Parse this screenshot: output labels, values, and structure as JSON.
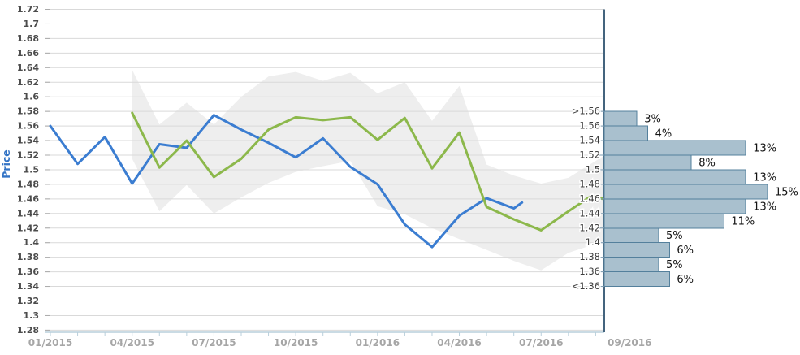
{
  "figure": {
    "y_axis": {
      "title": "Price",
      "labels": [
        "1.72",
        "1.7",
        "1.68",
        "1.66",
        "1.64",
        "1.62",
        "1.6",
        "1.58",
        "1.56",
        "1.54",
        "1.52",
        "1.5",
        "1.48",
        "1.46",
        "1.44",
        "1.42",
        "1.4",
        "1.38",
        "1.36",
        "1.34",
        "1.32",
        "1.3",
        "1.28"
      ],
      "min": 1.28,
      "max": 1.72,
      "step": 0.02
    },
    "x_axis": {
      "labels": [
        {
          "text": "01/2015",
          "month": 0
        },
        {
          "text": "04/2015",
          "month": 3
        },
        {
          "text": "07/2015",
          "month": 6
        },
        {
          "text": "10/2015",
          "month": 9
        },
        {
          "text": "01/2016",
          "month": 12
        },
        {
          "text": "04/2016",
          "month": 15
        },
        {
          "text": "07/2016",
          "month": 18
        }
      ],
      "end_label": "09/2016",
      "minor_tick_every_month": true
    }
  },
  "chart_data": [
    {
      "type": "line",
      "ylabel": "Price",
      "ylim": [
        1.28,
        1.72
      ],
      "x_unit": "months since 01/2015",
      "grid": true,
      "legend": "none",
      "series": [
        {
          "name": "blue-price-series",
          "color": "#3b7dd1",
          "points": [
            [
              0,
              1.56
            ],
            [
              1,
              1.508
            ],
            [
              2,
              1.545
            ],
            [
              3,
              1.481
            ],
            [
              4,
              1.535
            ],
            [
              5,
              1.53
            ],
            [
              6,
              1.575
            ],
            [
              7,
              1.555
            ],
            [
              8,
              1.537
            ],
            [
              9,
              1.517
            ],
            [
              10,
              1.543
            ],
            [
              11,
              1.504
            ],
            [
              12,
              1.48
            ],
            [
              13,
              1.425
            ],
            [
              14,
              1.394
            ],
            [
              15,
              1.437
            ],
            [
              16,
              1.461
            ],
            [
              17,
              1.447
            ],
            [
              17.3,
              1.455
            ]
          ]
        },
        {
          "name": "green-price-series",
          "color": "#8cb84b",
          "points": [
            [
              3,
              1.578
            ],
            [
              4,
              1.503
            ],
            [
              5,
              1.54
            ],
            [
              6,
              1.49
            ],
            [
              7,
              1.515
            ],
            [
              8,
              1.555
            ],
            [
              9,
              1.572
            ],
            [
              10,
              1.568
            ],
            [
              11,
              1.572
            ],
            [
              12,
              1.541
            ],
            [
              13,
              1.571
            ],
            [
              14,
              1.502
            ],
            [
              15,
              1.551
            ],
            [
              16,
              1.449
            ],
            [
              17,
              1.432
            ],
            [
              18,
              1.417
            ],
            [
              19,
              1.443
            ],
            [
              19.8,
              1.463
            ],
            [
              20.3,
              1.46
            ]
          ]
        }
      ],
      "band": {
        "name": "forecast-range-band",
        "color": "#eeeeee",
        "points_month_upper_lower": [
          [
            3,
            1.637,
            1.515
          ],
          [
            4,
            1.562,
            1.443
          ],
          [
            5,
            1.592,
            1.479
          ],
          [
            6,
            1.562,
            1.44
          ],
          [
            7,
            1.6,
            1.462
          ],
          [
            8,
            1.628,
            1.482
          ],
          [
            9,
            1.634,
            1.497
          ],
          [
            10,
            1.622,
            1.505
          ],
          [
            11,
            1.633,
            1.512
          ],
          [
            12,
            1.605,
            1.45
          ],
          [
            13,
            1.62,
            1.439
          ],
          [
            14,
            1.567,
            1.42
          ],
          [
            15,
            1.615,
            1.405
          ],
          [
            16,
            1.507,
            1.39
          ],
          [
            17,
            1.492,
            1.375
          ],
          [
            18,
            1.481,
            1.362
          ],
          [
            19,
            1.489,
            1.386
          ],
          [
            20.3,
            1.519,
            1.402
          ]
        ]
      }
    },
    {
      "type": "bar",
      "orientation": "horizontal",
      "bucket_boundaries": [
        ">1.56",
        "1.56",
        "1.54",
        "1.52",
        "1.5",
        "1.48",
        "1.46",
        "1.44",
        "1.42",
        "1.4",
        "1.38",
        "1.36",
        "<1.36"
      ],
      "values": [
        3,
        4,
        13,
        8,
        13,
        15,
        13,
        11,
        5,
        6,
        5,
        6
      ],
      "value_labels": [
        "3%",
        "4%",
        "13%",
        "8%",
        "13%",
        "15%",
        "13%",
        "11%",
        "5%",
        "6%",
        "5%",
        "6%"
      ],
      "bar_fill": "#a9c0ce",
      "bar_border": "#54809c",
      "axis_color": "#44647e"
    }
  ]
}
